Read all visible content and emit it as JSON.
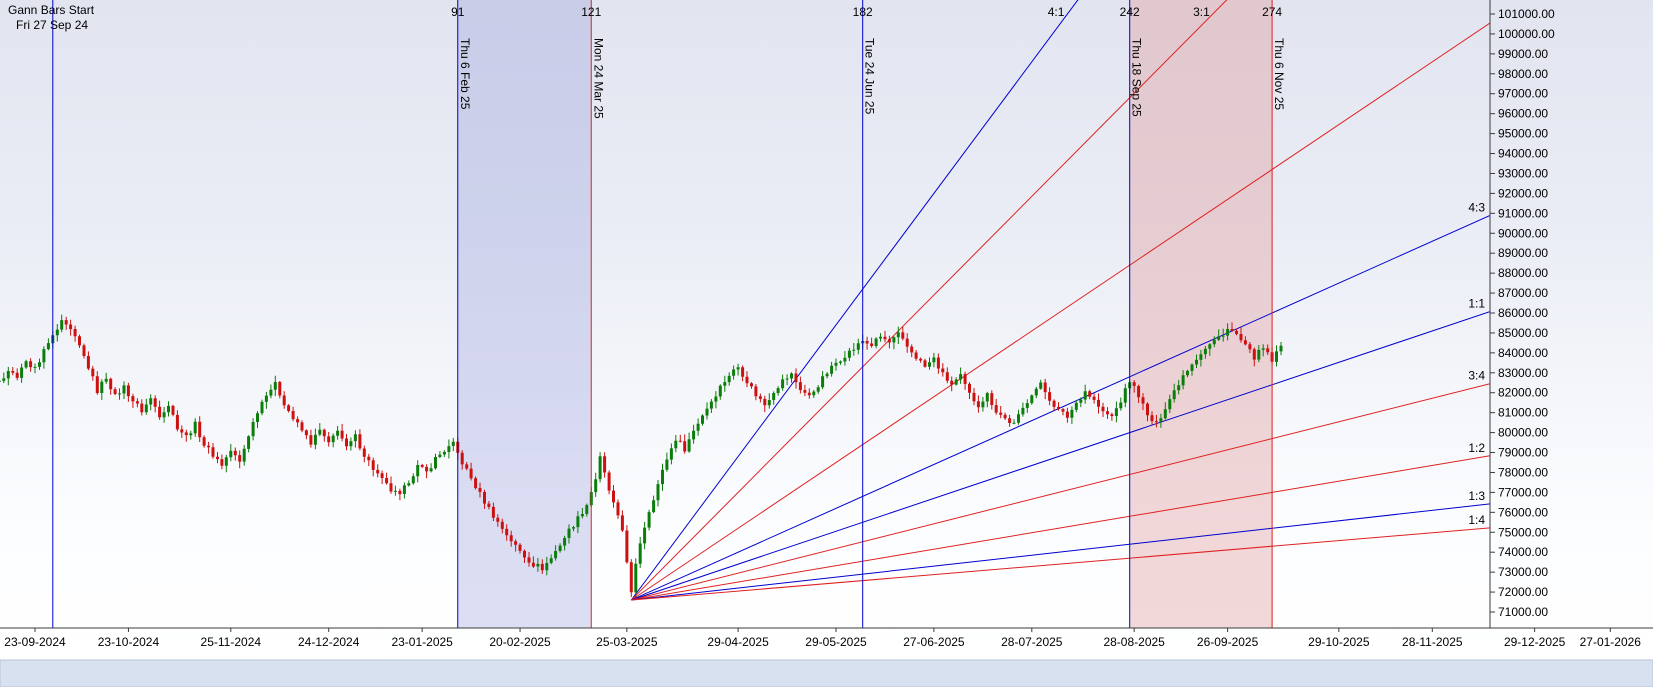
{
  "chart_data": {
    "type": "candlestick",
    "title": "Gann Bars Start",
    "start_label": "Fri 27 Sep 24",
    "y_axis": {
      "min": 71000,
      "max": 101000,
      "step": 1000,
      "tick_labels": [
        "71000.00",
        "72000.00",
        "73000.00",
        "74000.00",
        "75000.00",
        "76000.00",
        "77000.00",
        "78000.00",
        "79000.00",
        "80000.00",
        "81000.00",
        "82000.00",
        "83000.00",
        "84000.00",
        "85000.00",
        "86000.00",
        "87000.00",
        "88000.00",
        "89000.00",
        "90000.00",
        "91000.00",
        "92000.00",
        "93000.00",
        "94000.00",
        "95000.00",
        "96000.00",
        "97000.00",
        "98000.00",
        "99000.00",
        "100000.00",
        "101000.00"
      ]
    },
    "x_axis": {
      "tick_labels": [
        "23-09-2024",
        "23-10-2024",
        "25-11-2024",
        "24-12-2024",
        "23-01-2025",
        "20-02-2025",
        "25-03-2025",
        "29-04-2025",
        "29-05-2025",
        "27-06-2025",
        "28-07-2025",
        "28-08-2025",
        "26-09-2025",
        "29-10-2025",
        "28-11-2025",
        "29-12-2025",
        "27-01-2026"
      ],
      "tick_bar_index": [
        0,
        21,
        44,
        66,
        87,
        109,
        133,
        158,
        180,
        202,
        224,
        247,
        268,
        293,
        314,
        337,
        354
      ]
    },
    "gann_start_line": {
      "bar_index": 4,
      "color": "#0000d0"
    },
    "gann_verticals": [
      {
        "count_label": "91",
        "date_label": "Thu 6 Feb 25",
        "bar_index": 95,
        "color": "#0000d0"
      },
      {
        "count_label": "121",
        "date_label": "Mon 24 Mar 25",
        "bar_index": 125,
        "color": "#e02020"
      },
      {
        "count_label": "182",
        "date_label": "Tue 24 Jun 25",
        "bar_index": 186,
        "color": "#0000d0"
      },
      {
        "count_label": "242",
        "date_label": "Thu 18 Sep 25",
        "bar_index": 246,
        "color": "#0000d0"
      },
      {
        "count_label": "274",
        "date_label": "Thu 6 Nov 25",
        "bar_index": 278,
        "color": "#e02020"
      }
    ],
    "time_bands": [
      {
        "from_bar": 95,
        "to_bar": 125,
        "fill": "#8f96d8",
        "opacity": 0.3
      },
      {
        "from_bar": 246,
        "to_bar": 278,
        "fill": "#e09898",
        "opacity": 0.38
      }
    ],
    "gann_fan": {
      "origin_bar_index": 134,
      "origin_price": 71600,
      "unit_slope_price_per_bar": 75,
      "lines": [
        {
          "label": "4:1",
          "ratio": 4,
          "color": "#0000d0"
        },
        {
          "label": "3:1",
          "ratio": 3,
          "color": "#e02020"
        },
        {
          "label": "",
          "ratio": 2,
          "color": "#e02020"
        },
        {
          "label": "4:3",
          "ratio": 1.3333,
          "color": "#0000d0"
        },
        {
          "label": "1:1",
          "ratio": 1,
          "color": "#0000d0"
        },
        {
          "label": "3:4",
          "ratio": 0.75,
          "color": "#e02020"
        },
        {
          "label": "1:2",
          "ratio": 0.5,
          "color": "#e02020"
        },
        {
          "label": "1:3",
          "ratio": 0.3333,
          "color": "#0000d0"
        },
        {
          "label": "1:4",
          "ratio": 0.25,
          "color": "#e02020"
        }
      ]
    },
    "series": {
      "interval": "daily-bars",
      "first_bar_index": -8,
      "last_bar_index": 280,
      "up_color": "#0b7d0b",
      "down_color": "#cc1111",
      "price_path": [
        [
          -8,
          82500
        ],
        [
          -6,
          83100
        ],
        [
          -4,
          82800
        ],
        [
          -2,
          83500
        ],
        [
          0,
          83200
        ],
        [
          2,
          84100
        ],
        [
          4,
          84800
        ],
        [
          6,
          85500
        ],
        [
          8,
          85100
        ],
        [
          10,
          84300
        ],
        [
          12,
          83300
        ],
        [
          14,
          82100
        ],
        [
          16,
          82800
        ],
        [
          18,
          81800
        ],
        [
          20,
          82300
        ],
        [
          22,
          81600
        ],
        [
          24,
          81100
        ],
        [
          26,
          81700
        ],
        [
          28,
          80900
        ],
        [
          30,
          81400
        ],
        [
          32,
          80300
        ],
        [
          34,
          79800
        ],
        [
          36,
          80400
        ],
        [
          38,
          79400
        ],
        [
          40,
          78900
        ],
        [
          42,
          78400
        ],
        [
          44,
          79100
        ],
        [
          46,
          78500
        ],
        [
          48,
          79900
        ],
        [
          50,
          81100
        ],
        [
          52,
          82000
        ],
        [
          54,
          82400
        ],
        [
          56,
          81500
        ],
        [
          58,
          80700
        ],
        [
          60,
          80100
        ],
        [
          62,
          79500
        ],
        [
          64,
          80100
        ],
        [
          66,
          79400
        ],
        [
          68,
          80200
        ],
        [
          70,
          79200
        ],
        [
          72,
          79800
        ],
        [
          74,
          78900
        ],
        [
          76,
          78200
        ],
        [
          78,
          77600
        ],
        [
          80,
          77100
        ],
        [
          82,
          76800
        ],
        [
          84,
          77600
        ],
        [
          86,
          78300
        ],
        [
          88,
          78000
        ],
        [
          90,
          78700
        ],
        [
          92,
          79100
        ],
        [
          94,
          79400
        ],
        [
          96,
          78500
        ],
        [
          98,
          77700
        ],
        [
          100,
          76900
        ],
        [
          102,
          76200
        ],
        [
          104,
          75500
        ],
        [
          106,
          74900
        ],
        [
          108,
          74300
        ],
        [
          110,
          73800
        ],
        [
          112,
          73400
        ],
        [
          114,
          73200
        ],
        [
          116,
          73700
        ],
        [
          118,
          74400
        ],
        [
          120,
          75100
        ],
        [
          122,
          75700
        ],
        [
          124,
          76400
        ],
        [
          126,
          77700
        ],
        [
          127,
          78700
        ],
        [
          128,
          77900
        ],
        [
          129,
          77100
        ],
        [
          130,
          76400
        ],
        [
          131,
          75700
        ],
        [
          132,
          75100
        ],
        [
          133,
          73600
        ],
        [
          134,
          71900
        ],
        [
          135,
          73300
        ],
        [
          136,
          74500
        ],
        [
          138,
          76100
        ],
        [
          140,
          77400
        ],
        [
          142,
          78700
        ],
        [
          144,
          79700
        ],
        [
          146,
          79200
        ],
        [
          148,
          80100
        ],
        [
          150,
          80900
        ],
        [
          152,
          81600
        ],
        [
          154,
          82300
        ],
        [
          156,
          82900
        ],
        [
          158,
          83300
        ],
        [
          160,
          82600
        ],
        [
          162,
          81900
        ],
        [
          164,
          81400
        ],
        [
          166,
          82100
        ],
        [
          168,
          82600
        ],
        [
          170,
          82900
        ],
        [
          172,
          82200
        ],
        [
          174,
          81800
        ],
        [
          176,
          82400
        ],
        [
          178,
          83000
        ],
        [
          180,
          83500
        ],
        [
          182,
          83900
        ],
        [
          184,
          84200
        ],
        [
          186,
          84600
        ],
        [
          188,
          84400
        ],
        [
          190,
          84800
        ],
        [
          192,
          84500
        ],
        [
          194,
          84900
        ],
        [
          196,
          84300
        ],
        [
          198,
          83800
        ],
        [
          200,
          83300
        ],
        [
          202,
          83700
        ],
        [
          204,
          82900
        ],
        [
          206,
          82400
        ],
        [
          208,
          82800
        ],
        [
          210,
          81900
        ],
        [
          212,
          81400
        ],
        [
          214,
          81900
        ],
        [
          216,
          81100
        ],
        [
          218,
          80700
        ],
        [
          220,
          80400
        ],
        [
          222,
          81200
        ],
        [
          224,
          82000
        ],
        [
          226,
          82400
        ],
        [
          228,
          81700
        ],
        [
          230,
          81100
        ],
        [
          232,
          80800
        ],
        [
          234,
          81500
        ],
        [
          236,
          82100
        ],
        [
          238,
          81600
        ],
        [
          240,
          81000
        ],
        [
          242,
          80800
        ],
        [
          244,
          81600
        ],
        [
          246,
          82600
        ],
        [
          248,
          81900
        ],
        [
          250,
          80800
        ],
        [
          252,
          80400
        ],
        [
          254,
          81300
        ],
        [
          256,
          82100
        ],
        [
          258,
          82900
        ],
        [
          260,
          83500
        ],
        [
          262,
          84000
        ],
        [
          264,
          84400
        ],
        [
          266,
          84800
        ],
        [
          268,
          85200
        ],
        [
          270,
          84900
        ],
        [
          272,
          84300
        ],
        [
          274,
          83800
        ],
        [
          276,
          84200
        ],
        [
          278,
          83600
        ],
        [
          280,
          84300
        ]
      ]
    }
  }
}
